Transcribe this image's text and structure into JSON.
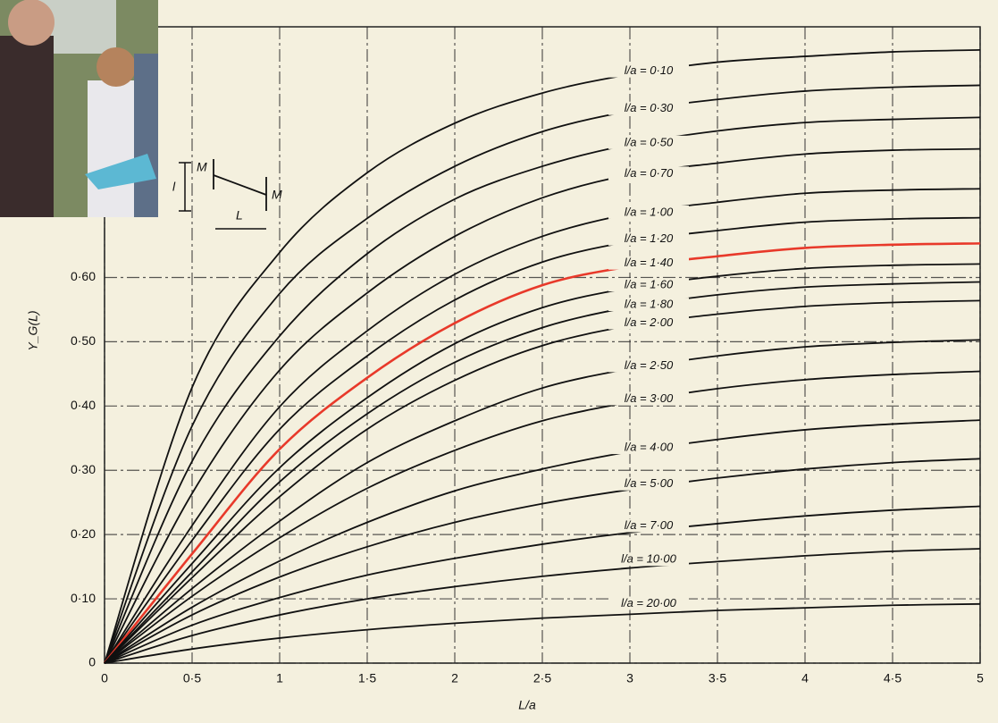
{
  "chart_data": {
    "type": "line",
    "x_label": "L/a",
    "y_label": "Y_G(L)",
    "annotation_labels": [
      "l",
      "M",
      "M",
      "L"
    ],
    "x": [
      0,
      0.5,
      1,
      1.5,
      2,
      2.5,
      3,
      3.5,
      4,
      4.5,
      5
    ],
    "xlim": [
      0,
      5
    ],
    "ylim": [
      0,
      0.99
    ],
    "xticks": [
      0,
      {
        "value": 0.5,
        "label": "0·5"
      },
      1,
      {
        "value": 1.5,
        "label": "1·5"
      },
      2,
      {
        "value": 2.5,
        "label": "2·5"
      },
      3,
      {
        "value": 3.5,
        "label": "3·5"
      },
      4,
      {
        "value": 4.5,
        "label": "4·5"
      },
      5
    ],
    "yticks": [
      0,
      {
        "value": 0.1,
        "label": "0·10"
      },
      {
        "value": 0.2,
        "label": "0·20"
      },
      {
        "value": 0.3,
        "label": "0·30"
      },
      {
        "value": 0.4,
        "label": "0·40"
      },
      {
        "value": 0.5,
        "label": "0·50"
      },
      {
        "value": 0.6,
        "label": "0·60"
      }
    ],
    "grid": true,
    "series": [
      {
        "name": "l/a = 0·10",
        "color": "#111111",
        "values": [
          0,
          0.429,
          0.639,
          0.763,
          0.84,
          0.887,
          0.916,
          0.935,
          0.944,
          0.951,
          0.954
        ]
      },
      {
        "name": "l/a = 0·30",
        "color": "#111111",
        "values": [
          0,
          0.369,
          0.575,
          0.692,
          0.773,
          0.827,
          0.859,
          0.877,
          0.89,
          0.896,
          0.899
        ]
      },
      {
        "name": "l/a = 0·50",
        "color": "#111111",
        "values": [
          0,
          0.314,
          0.509,
          0.637,
          0.722,
          0.773,
          0.807,
          0.828,
          0.841,
          0.846,
          0.849
        ]
      },
      {
        "name": "l/a = 0·70",
        "color": "#111111",
        "values": [
          0,
          0.264,
          0.456,
          0.576,
          0.664,
          0.724,
          0.76,
          0.778,
          0.792,
          0.798,
          0.8
        ]
      },
      {
        "name": "l/a = 1·00",
        "color": "#111111",
        "values": [
          0,
          0.214,
          0.399,
          0.517,
          0.605,
          0.664,
          0.699,
          0.717,
          0.731,
          0.736,
          0.738
        ]
      },
      {
        "name": "l/a = 1·20",
        "color": "#111111",
        "values": [
          0,
          0.191,
          0.364,
          0.478,
          0.565,
          0.624,
          0.656,
          0.673,
          0.686,
          0.691,
          0.693
        ]
      },
      {
        "name": "l/a = 1·40",
        "color": "#e8392a",
        "values": [
          0,
          0.17,
          0.333,
          0.444,
          0.529,
          0.588,
          0.617,
          0.633,
          0.646,
          0.651,
          0.653
        ]
      },
      {
        "name": "l/a = 1·60",
        "color": "#111111",
        "values": [
          0,
          0.155,
          0.304,
          0.413,
          0.497,
          0.553,
          0.584,
          0.602,
          0.614,
          0.619,
          0.621
        ]
      },
      {
        "name": "l/a = 1·80",
        "color": "#111111",
        "values": [
          0,
          0.142,
          0.282,
          0.388,
          0.468,
          0.522,
          0.554,
          0.573,
          0.585,
          0.59,
          0.593
        ]
      },
      {
        "name": "l/a = 2·00",
        "color": "#111111",
        "values": [
          0,
          0.133,
          0.259,
          0.364,
          0.44,
          0.494,
          0.525,
          0.543,
          0.555,
          0.561,
          0.564
        ]
      },
      {
        "name": "l/a = 2·50",
        "color": "#111111",
        "values": [
          0,
          0.116,
          0.221,
          0.312,
          0.377,
          0.428,
          0.458,
          0.478,
          0.492,
          0.499,
          0.503
        ]
      },
      {
        "name": "l/a = 3·00",
        "color": "#111111",
        "values": [
          0,
          0.104,
          0.195,
          0.272,
          0.331,
          0.377,
          0.406,
          0.427,
          0.441,
          0.449,
          0.454
        ]
      },
      {
        "name": "l/a = 4·00",
        "color": "#111111",
        "values": [
          0,
          0.087,
          0.159,
          0.219,
          0.268,
          0.302,
          0.329,
          0.348,
          0.363,
          0.372,
          0.378
        ]
      },
      {
        "name": "l/a = 5·00",
        "color": "#111111",
        "values": [
          0,
          0.075,
          0.134,
          0.181,
          0.219,
          0.248,
          0.27,
          0.288,
          0.302,
          0.312,
          0.318
        ]
      },
      {
        "name": "l/a = 7·00",
        "color": "#111111",
        "values": [
          0,
          0.059,
          0.102,
          0.137,
          0.163,
          0.185,
          0.203,
          0.217,
          0.229,
          0.238,
          0.244
        ]
      },
      {
        "name": "l/a = 10·00",
        "color": "#111111",
        "values": [
          0,
          0.043,
          0.075,
          0.1,
          0.119,
          0.135,
          0.148,
          0.158,
          0.167,
          0.174,
          0.178
        ]
      },
      {
        "name": "l/a = 20·00",
        "color": "#111111",
        "values": [
          0,
          0.022,
          0.039,
          0.052,
          0.062,
          0.07,
          0.076,
          0.082,
          0.086,
          0.09,
          0.092
        ]
      }
    ]
  }
}
